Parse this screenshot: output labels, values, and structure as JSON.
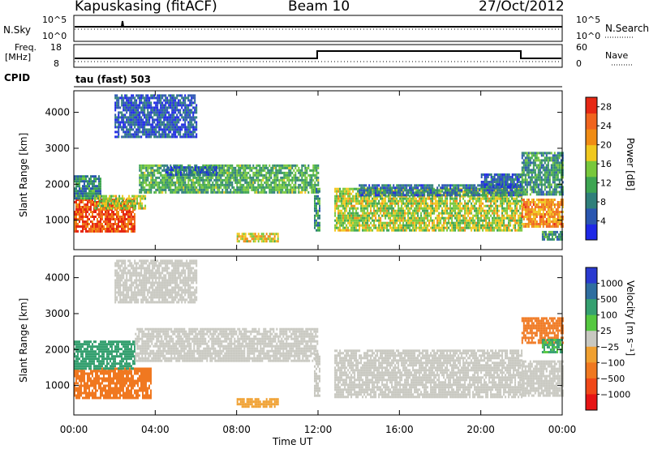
{
  "header": {
    "station": "Kapuskasing (fitACF)",
    "beam": "Beam 10",
    "date": "27/Oct/2012"
  },
  "top_panel": {
    "nsky_label": "N.Sky",
    "nsky_ticks": [
      "10^5",
      "10^0"
    ],
    "nsearch_label": "N.Search",
    "nsearch_ticks": [
      "10^5",
      "10^0"
    ],
    "freq_label": "Freq.",
    "freq_unit": "[MHz]",
    "freq_ticks": [
      "18",
      "8"
    ],
    "nave_label": "Nave",
    "nave_ticks": [
      "60",
      "0"
    ],
    "cpid_label": "CPID",
    "cpid_value": "tau (fast) 503"
  },
  "colors": {
    "power_scale": [
      "#1e28e6",
      "#2a56b0",
      "#2f7f7a",
      "#3da552",
      "#78c83c",
      "#f0c81e",
      "#f08c14",
      "#f0641e",
      "#e62814"
    ],
    "velocity_scale": [
      "#2a3ad0",
      "#2f6ea0",
      "#35a070",
      "#55c840",
      "#c8c8c0",
      "#f0a030",
      "#f07820",
      "#f04818",
      "#e61414"
    ]
  },
  "chart_data": [
    {
      "type": "heatmap",
      "panel": "power",
      "title": "",
      "xlabel": "Time UT",
      "ylabel": "Slant Range [km]",
      "x_ticks": [
        "00:00",
        "04:00",
        "08:00",
        "12:00",
        "16:00",
        "20:00",
        "00:00"
      ],
      "y_ticks": [
        "1000",
        "2000",
        "3000",
        "4000"
      ],
      "xlim_hours": [
        0,
        24
      ],
      "ylim_km": [
        180,
        4600
      ],
      "colorbar_label": "Power [dB]",
      "colorbar_ticks": [
        "4",
        "8",
        "12",
        "16",
        "20",
        "24",
        "28"
      ],
      "colorbar_range": [
        0,
        30
      ],
      "regions": [
        {
          "t0": 0.0,
          "t1": 3.0,
          "r0": 700,
          "r1": 1600,
          "value": 26
        },
        {
          "t0": 0.0,
          "t1": 1.3,
          "r0": 1600,
          "r1": 2250,
          "value": 9
        },
        {
          "t0": 1.0,
          "t1": 3.5,
          "r0": 1300,
          "r1": 1700,
          "value": 16
        },
        {
          "t0": 3.2,
          "t1": 12.0,
          "r0": 1750,
          "r1": 2550,
          "value": 12
        },
        {
          "t0": 4.5,
          "t1": 7.0,
          "r0": 2250,
          "r1": 2500,
          "value": 6
        },
        {
          "t0": 8.0,
          "t1": 10.0,
          "r0": 380,
          "r1": 650,
          "value": 18
        },
        {
          "t0": 11.8,
          "t1": 12.1,
          "r0": 700,
          "r1": 1900,
          "value": 10
        },
        {
          "t0": 12.8,
          "t1": 22.0,
          "r0": 700,
          "r1": 1900,
          "value": 16
        },
        {
          "t0": 14.0,
          "t1": 22.0,
          "r0": 1700,
          "r1": 2000,
          "value": 7
        },
        {
          "t0": 20.0,
          "t1": 22.0,
          "r0": 1950,
          "r1": 2300,
          "value": 6
        },
        {
          "t0": 22.0,
          "t1": 24.0,
          "r0": 800,
          "r1": 1600,
          "value": 22
        },
        {
          "t0": 22.0,
          "t1": 24.0,
          "r0": 1700,
          "r1": 2900,
          "value": 10
        },
        {
          "t0": 23.0,
          "t1": 24.0,
          "r0": 450,
          "r1": 700,
          "value": 10
        },
        {
          "t0": 2.0,
          "t1": 6.0,
          "r0": 3300,
          "r1": 4500,
          "value": 5
        }
      ]
    },
    {
      "type": "heatmap",
      "panel": "velocity",
      "title": "",
      "xlabel": "Time UT",
      "ylabel": "Slant Range [km]",
      "x_ticks": [
        "00:00",
        "04:00",
        "08:00",
        "12:00",
        "16:00",
        "20:00",
        "00:00"
      ],
      "y_ticks": [
        "1000",
        "2000",
        "3000",
        "4000"
      ],
      "xlim_hours": [
        0,
        24
      ],
      "ylim_km": [
        180,
        4600
      ],
      "colorbar_label": "Velocity [m s⁻¹]",
      "colorbar_ticks": [
        "1000",
        "500",
        "100",
        "25",
        "−25",
        "−100",
        "−500",
        "−1000"
      ],
      "regions": [
        {
          "t0": 0.0,
          "t1": 3.8,
          "r0": 650,
          "r1": 1500,
          "value": -300
        },
        {
          "t0": 0.0,
          "t1": 3.0,
          "r0": 1500,
          "r1": 2250,
          "value": 300
        },
        {
          "t0": 3.0,
          "t1": 12.0,
          "r0": 1700,
          "r1": 2600,
          "value": 0
        },
        {
          "t0": 8.0,
          "t1": 10.0,
          "r0": 380,
          "r1": 650,
          "value": -60
        },
        {
          "t0": 11.8,
          "t1": 12.1,
          "r0": 700,
          "r1": 1900,
          "value": 0
        },
        {
          "t0": 12.8,
          "t1": 22.0,
          "r0": 700,
          "r1": 2000,
          "value": 0
        },
        {
          "t0": 22.0,
          "t1": 24.0,
          "r0": 700,
          "r1": 1700,
          "value": 0
        },
        {
          "t0": 22.0,
          "t1": 24.0,
          "r0": 2200,
          "r1": 2900,
          "value": -200
        },
        {
          "t0": 23.0,
          "t1": 24.0,
          "r0": 1900,
          "r1": 2300,
          "value": 120
        },
        {
          "t0": 2.0,
          "t1": 6.0,
          "r0": 3300,
          "r1": 4500,
          "value": 0
        }
      ]
    }
  ]
}
